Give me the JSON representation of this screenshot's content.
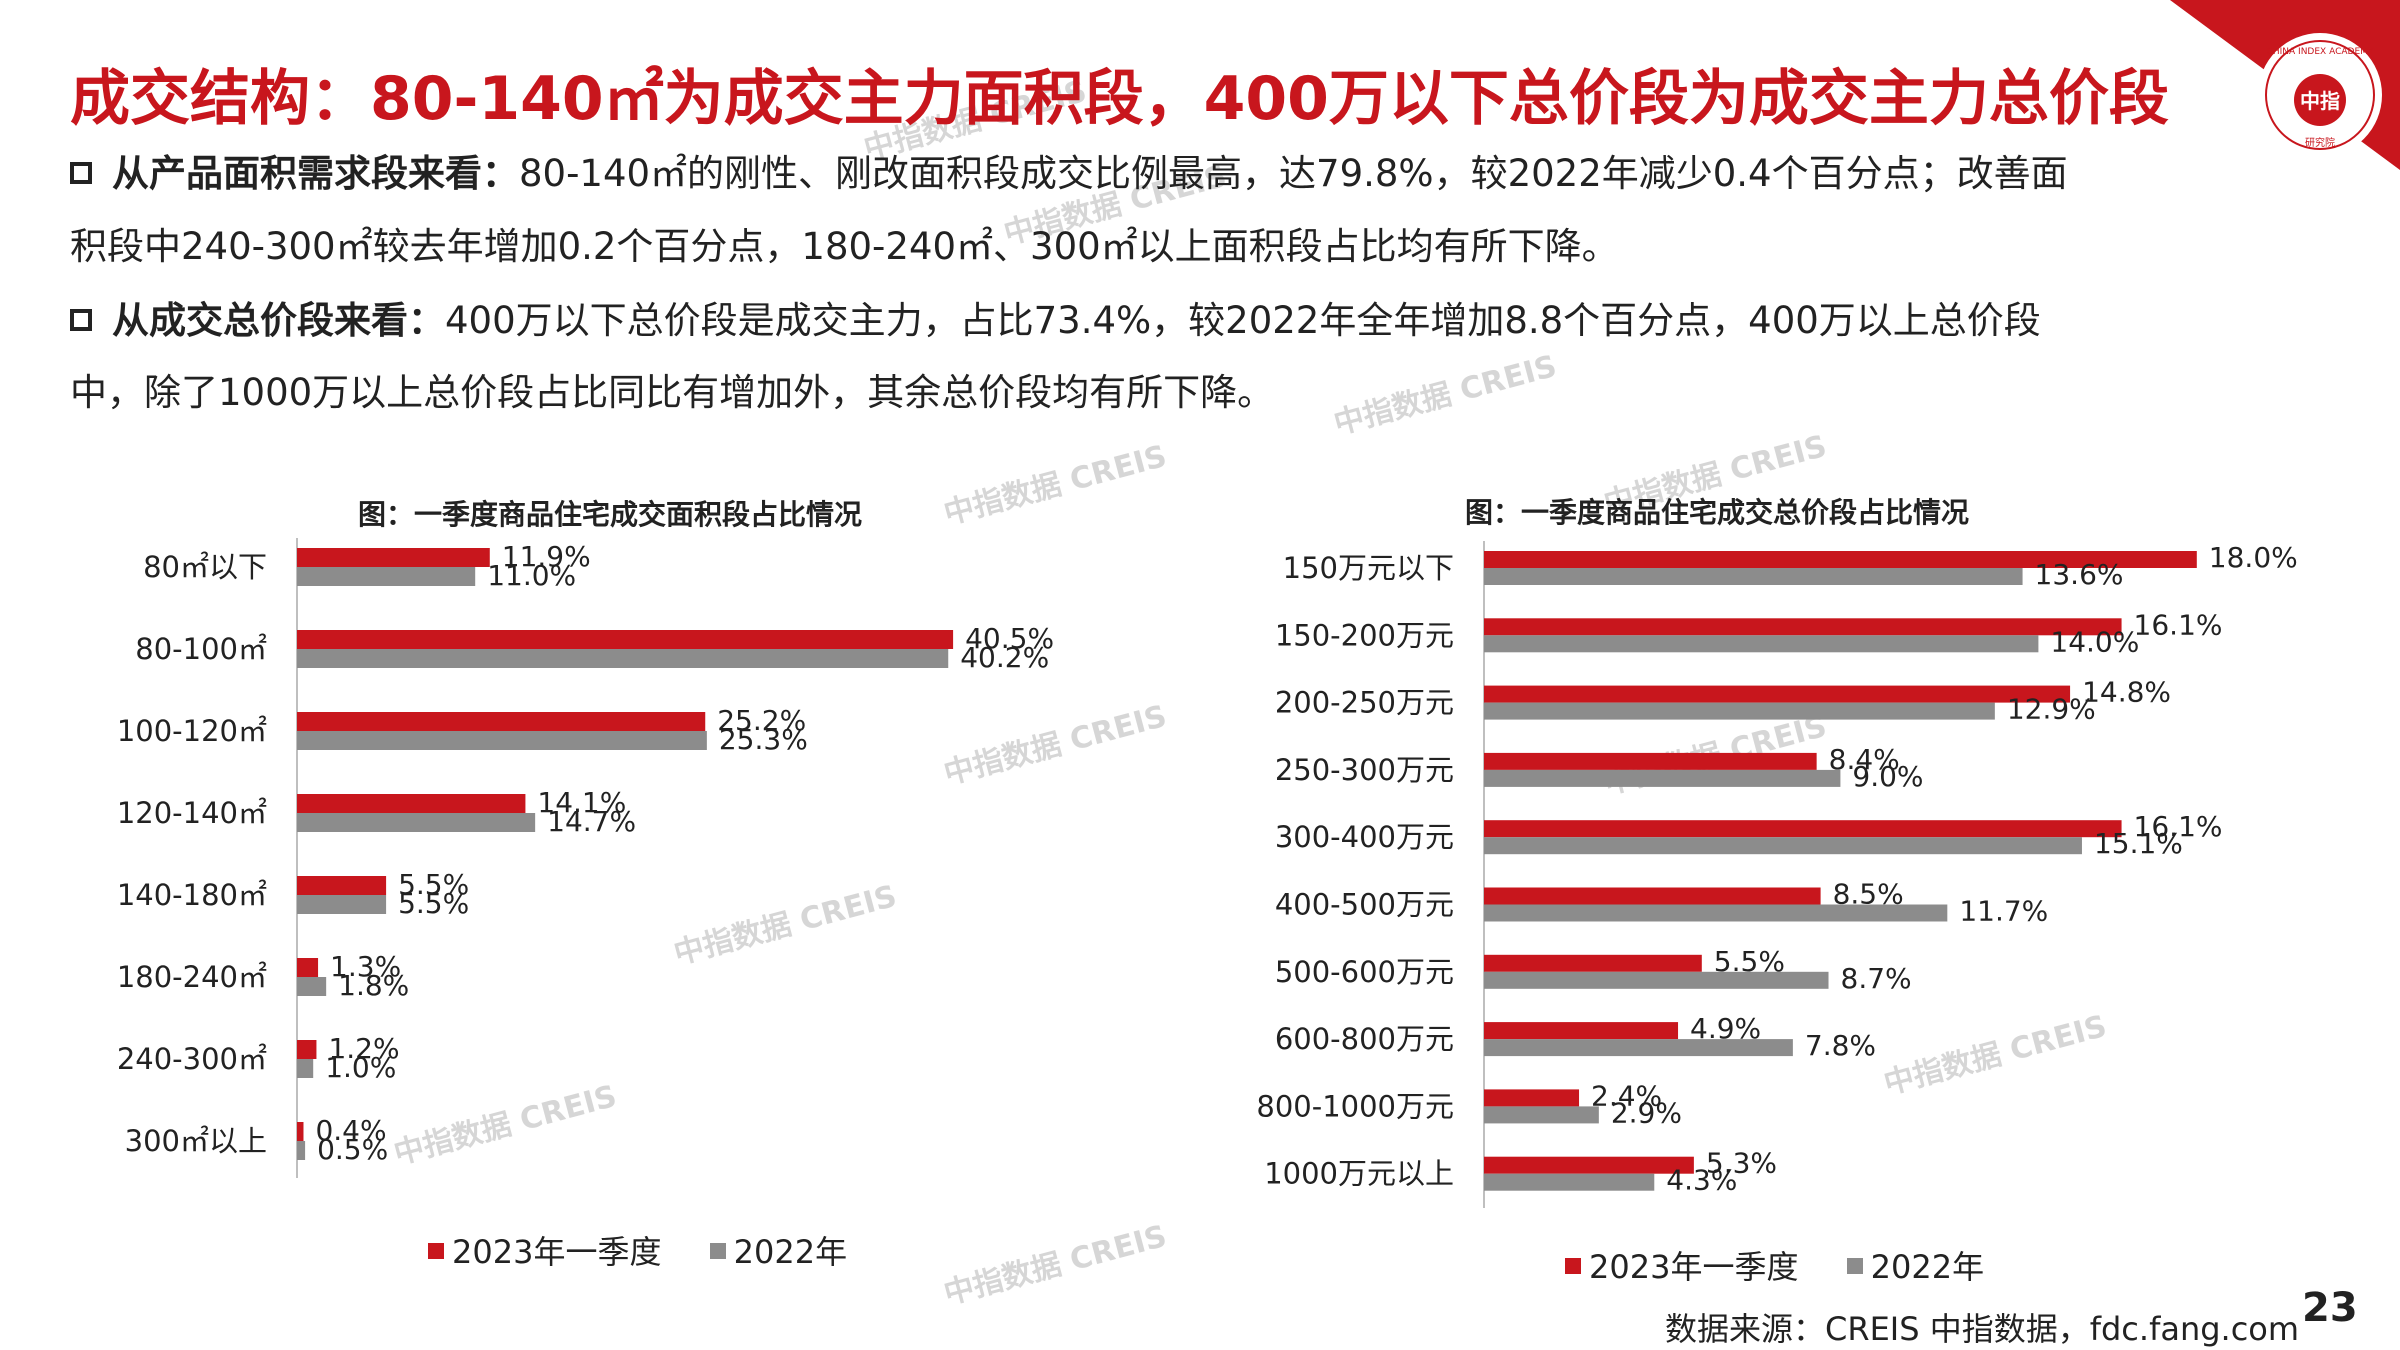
{
  "slide": {
    "title": "成交结构：80-140㎡为成交主力面积段，400万以下总价段为成交主力总价段",
    "page_number": "23",
    "source": "数据来源：CREIS 中指数据，fdc.fang.com",
    "watermark": "中指数据 CREIS",
    "logo_top_text": "CHINA INDEX ACADEMY",
    "logo_center_text": "中指",
    "logo_bottom_text": "研究院",
    "accent_color": "#c8161d"
  },
  "paragraphs": [
    {
      "lead": "从产品面积需求段来看：",
      "line1": "80-140㎡的刚性、刚改面积段成交比例最高，达79.8%，较2022年减少0.4个百分点；改善面",
      "line2": "积段中240-300㎡较去年增加0.2个百分点，180-240㎡、300㎡以上面积段占比均有所下降。"
    },
    {
      "lead": "从成交总价段来看：",
      "line1": "400万以下总价段是成交主力，占比73.4%，较2022年全年增加8.8个百分点，400万以上总价段",
      "line2": "中，除了1000万以上总价段占比同比有增加外，其余总价段均有所下降。"
    }
  ],
  "chart_data": [
    {
      "type": "bar",
      "orientation": "horizontal",
      "title": "图：一季度商品住宅成交面积段占比情况",
      "categories": [
        "80㎡以下",
        "80-100㎡",
        "100-120㎡",
        "120-140㎡",
        "140-180㎡",
        "180-240㎡",
        "240-300㎡",
        "300㎡以上"
      ],
      "series": [
        {
          "name": "2023年一季度",
          "color": "#c8161d",
          "values": [
            11.9,
            40.5,
            25.2,
            14.1,
            5.5,
            1.3,
            1.2,
            0.4
          ]
        },
        {
          "name": "2022年",
          "color": "#8c8c8c",
          "values": [
            11.0,
            40.2,
            25.3,
            14.7,
            5.5,
            1.8,
            1.0,
            0.5
          ]
        }
      ],
      "value_labels": {
        "2023年一季度": [
          "11.9%",
          "40.5%",
          "25.2%",
          "14.1%",
          "5.5%",
          "1.3%",
          "1.2%",
          "0.4%"
        ],
        "2022年": [
          "11.0%",
          "40.2%",
          "25.3%",
          "14.7%",
          "5.5%",
          "1.8%",
          "1.0%",
          "0.5%"
        ]
      },
      "unit": "%",
      "grid": false,
      "legend_position": "bottom"
    },
    {
      "type": "bar",
      "orientation": "horizontal",
      "title": "图：一季度商品住宅成交总价段占比情况",
      "categories": [
        "150万元以下",
        "150-200万元",
        "200-250万元",
        "250-300万元",
        "300-400万元",
        "400-500万元",
        "500-600万元",
        "600-800万元",
        "800-1000万元",
        "1000万元以上"
      ],
      "series": [
        {
          "name": "2023年一季度",
          "color": "#c8161d",
          "values": [
            18.0,
            16.1,
            14.8,
            8.4,
            16.1,
            8.5,
            5.5,
            4.9,
            2.4,
            5.3
          ]
        },
        {
          "name": "2022年",
          "color": "#8c8c8c",
          "values": [
            13.6,
            14.0,
            12.9,
            9.0,
            15.1,
            11.7,
            8.7,
            7.8,
            2.9,
            4.3
          ]
        }
      ],
      "value_labels": {
        "2023年一季度": [
          "18.0%",
          "16.1%",
          "14.8%",
          "8.4%",
          "16.1%",
          "8.5%",
          "5.5%",
          "4.9%",
          "2.4%",
          "5.3%"
        ],
        "2022年": [
          "13.6%",
          "14.0%",
          "12.9%",
          "9.0%",
          "15.1%",
          "11.7%",
          "8.7%",
          "7.8%",
          "2.9%",
          "4.3%"
        ]
      },
      "unit": "%",
      "grid": false,
      "legend_position": "bottom"
    }
  ]
}
